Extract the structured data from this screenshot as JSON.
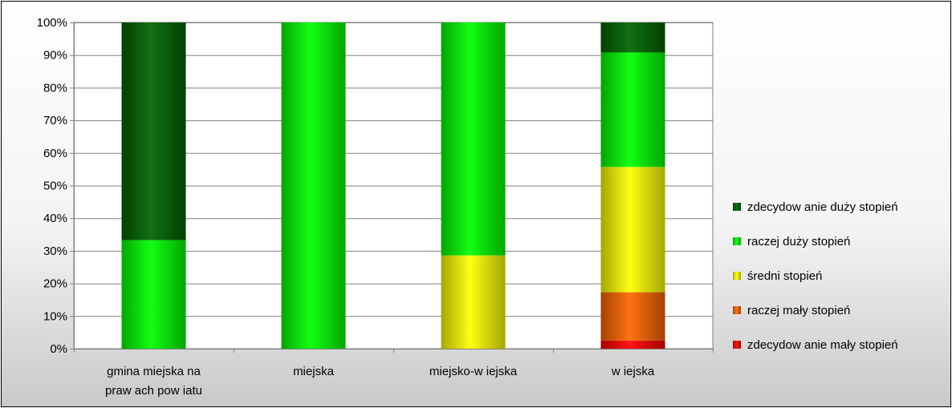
{
  "chart_data": {
    "type": "bar",
    "stacked": true,
    "percent_stacked": true,
    "categories": [
      [
        "gmina miejska na",
        "praw ach pow iatu"
      ],
      [
        "miejska"
      ],
      [
        "miejsko-w iejska"
      ],
      [
        "w iejska"
      ]
    ],
    "series": [
      {
        "name": "zdecydow anie mały stopień",
        "color": "#ff0000",
        "values": [
          0,
          0,
          0,
          2.5
        ]
      },
      {
        "name": "raczej mały stopień",
        "color": "#ff6600",
        "values": [
          0,
          0,
          0,
          14.8
        ]
      },
      {
        "name": "średni stopień",
        "color": "#ffff00",
        "values": [
          0,
          0,
          28.6,
          38.4
        ]
      },
      {
        "name": "raczej duży stopień",
        "color": "#00ff00",
        "values": [
          33.3,
          100,
          71.4,
          35.1
        ]
      },
      {
        "name": "zdecydow anie duży stopień",
        "color": "#006400",
        "values": [
          66.7,
          0,
          0,
          9.2
        ]
      }
    ],
    "legend_order": [
      4,
      3,
      2,
      1,
      0
    ],
    "ylim": [
      0,
      100
    ],
    "y_ticks": [
      0,
      10,
      20,
      30,
      40,
      50,
      60,
      70,
      80,
      90,
      100
    ],
    "y_tick_labels": [
      "0%",
      "10%",
      "20%",
      "30%",
      "40%",
      "50%",
      "60%",
      "70%",
      "80%",
      "90%",
      "100%"
    ],
    "grid": true,
    "legend_position": "right",
    "title": "",
    "xlabel": "",
    "ylabel": ""
  }
}
